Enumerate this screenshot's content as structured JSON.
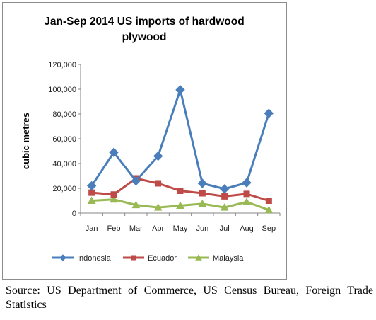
{
  "chart_data": {
    "type": "line",
    "title_lines": [
      "Jan-Sep 2014 US imports of hardwood",
      "plywood"
    ],
    "xlabel": "",
    "ylabel": "cubic metres",
    "categories": [
      "Jan",
      "Feb",
      "Mar",
      "Apr",
      "May",
      "Jun",
      "Jul",
      "Aug",
      "Sep"
    ],
    "ylim": [
      0,
      120000
    ],
    "yticks": [
      0,
      20000,
      40000,
      60000,
      80000,
      100000,
      120000
    ],
    "ytick_labels": [
      "0",
      "20,000",
      "40,000",
      "60,000",
      "80,000",
      "100,000",
      "120,000"
    ],
    "grid": false,
    "legend_position": "bottom",
    "series": [
      {
        "name": "Indonesia",
        "color": "#4a7ebb",
        "marker": "diamond",
        "values": [
          22000,
          49000,
          26000,
          46000,
          99500,
          24000,
          19500,
          24500,
          80500
        ]
      },
      {
        "name": "Ecuador",
        "color": "#be4b48",
        "marker": "square",
        "values": [
          16500,
          15000,
          28000,
          24000,
          18000,
          16000,
          13500,
          15500,
          10000
        ]
      },
      {
        "name": "Malaysia",
        "color": "#98b954",
        "marker": "triangle",
        "values": [
          10000,
          11000,
          6500,
          4500,
          6000,
          7500,
          4500,
          9000,
          2500
        ]
      }
    ]
  },
  "source_text": "Source: US Department of Commerce, US Census Bureau, Foreign Trade Statistics"
}
